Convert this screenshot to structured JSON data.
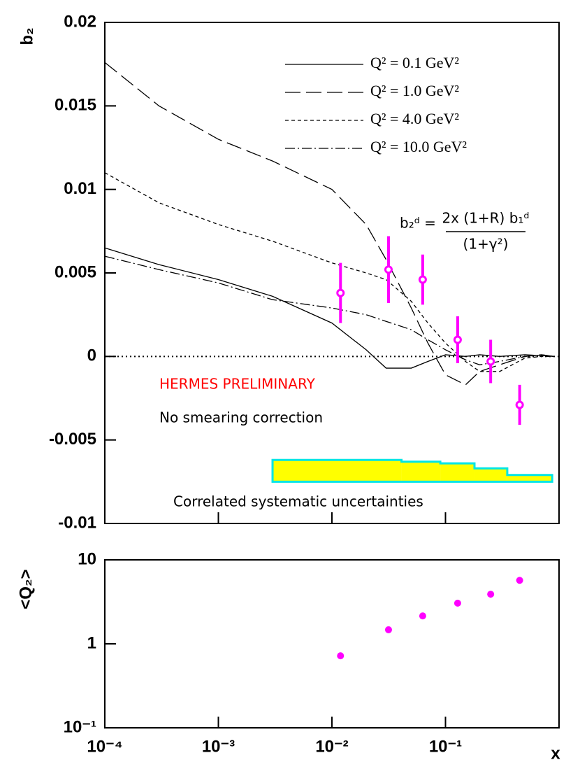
{
  "chart_data": [
    {
      "type": "line",
      "ylabel": "b₂",
      "xlim": [
        0.0001,
        1
      ],
      "xticks": [
        0.0001,
        0.001,
        0.01,
        0.1,
        1
      ],
      "xlog": true,
      "ylim": [
        -0.01,
        0.02
      ],
      "yticks": [
        -0.01,
        -0.005,
        0,
        0.005,
        0.01,
        0.015,
        0.02
      ],
      "x": [
        0.0001,
        0.0003,
        0.001,
        0.003,
        0.01,
        0.02,
        0.03,
        0.05,
        0.07,
        0.1,
        0.15,
        0.2,
        0.3,
        0.5,
        0.7,
        0.9
      ],
      "series": [
        {
          "name": "Q² = 0.1 GeV²",
          "color": "#000000",
          "dash": "solid",
          "values": [
            0.0065,
            0.0055,
            0.0046,
            0.0036,
            0.002,
            0.0004,
            -0.0007,
            -0.0007,
            -0.0003,
            0.0001,
            0,
            0.0001,
            0,
            0.0001,
            5e-05,
            0
          ]
        },
        {
          "name": "Q² = 1.0 GeV²",
          "color": "#000000",
          "dash": "longdash",
          "values": [
            0.0176,
            0.015,
            0.013,
            0.0117,
            0.01,
            0.0079,
            0.0058,
            0.0029,
            0.0008,
            -0.0011,
            -0.0017,
            -0.0009,
            -0.0005,
            0,
            0.0001,
            0
          ]
        },
        {
          "name": "Q² = 4.0 GeV²",
          "color": "#000000",
          "dash": "shortdash",
          "values": [
            0.011,
            0.0092,
            0.0079,
            0.0069,
            0.0056,
            0.005,
            0.0046,
            0.0033,
            0.002,
            0.0008,
            -0.0003,
            -0.0009,
            -0.0009,
            -0.0001,
            0,
            0
          ]
        },
        {
          "name": "Q² = 10.0 GeV²",
          "color": "#000000",
          "dash": "dashdot",
          "values": [
            0.006,
            0.0052,
            0.0044,
            0.0034,
            0.0029,
            0.0025,
            0.0021,
            0.0016,
            0.001,
            0.0004,
            -0.0002,
            -0.0005,
            -0.0003,
            0,
            0.0001,
            0
          ]
        }
      ],
      "points": {
        "color": "#ff00ff",
        "x": [
          0.0119,
          0.0315,
          0.063,
          0.128,
          0.25,
          0.45
        ],
        "values": [
          0.0038,
          0.0052,
          0.0046,
          0.001,
          -0.0003,
          -0.0029
        ],
        "errors": [
          0.0018,
          0.002,
          0.0015,
          0.0014,
          0.0013,
          0.0012
        ]
      },
      "band": {
        "color": "#ffff00",
        "edge_color": "#00e5e5",
        "edges": [
          0.003,
          0.041,
          0.09,
          0.18,
          0.35,
          0.87
        ],
        "top": [
          -0.0062,
          -0.0063,
          -0.0064,
          -0.0067,
          -0.0071
        ],
        "bottom": -0.0075
      },
      "formula": {
        "lhs": "b₂ᵈ =",
        "numerator": "2x (1+R) b₁ᵈ",
        "denominator": "(1+γ²)"
      },
      "annotations": [
        {
          "text": "HERMES PRELIMINARY",
          "color": "#ff0000"
        },
        {
          "text": "No smearing correction",
          "color": "#000000"
        },
        {
          "text": "Correlated systematic uncertainties",
          "color": "#000000"
        }
      ]
    },
    {
      "type": "scatter",
      "ylabel": "<Q₂>",
      "xlabel": "x",
      "xlim": [
        0.0001,
        1
      ],
      "xlog": true,
      "xticks": [
        {
          "value": 0.0001,
          "label": "10⁻⁴"
        },
        {
          "value": 0.001,
          "label": "10⁻³"
        },
        {
          "value": 0.01,
          "label": "10⁻²"
        },
        {
          "value": 0.1,
          "label": "10⁻¹"
        }
      ],
      "ylim": [
        0.1,
        10
      ],
      "ylog": true,
      "yticks": [
        {
          "value": 0.1,
          "label": "10⁻¹"
        },
        1,
        10
      ],
      "color": "#ff00ff",
      "x": [
        0.0119,
        0.0315,
        0.063,
        0.128,
        0.25,
        0.45
      ],
      "values": [
        0.72,
        1.47,
        2.15,
        3.05,
        3.9,
        5.7
      ]
    }
  ]
}
